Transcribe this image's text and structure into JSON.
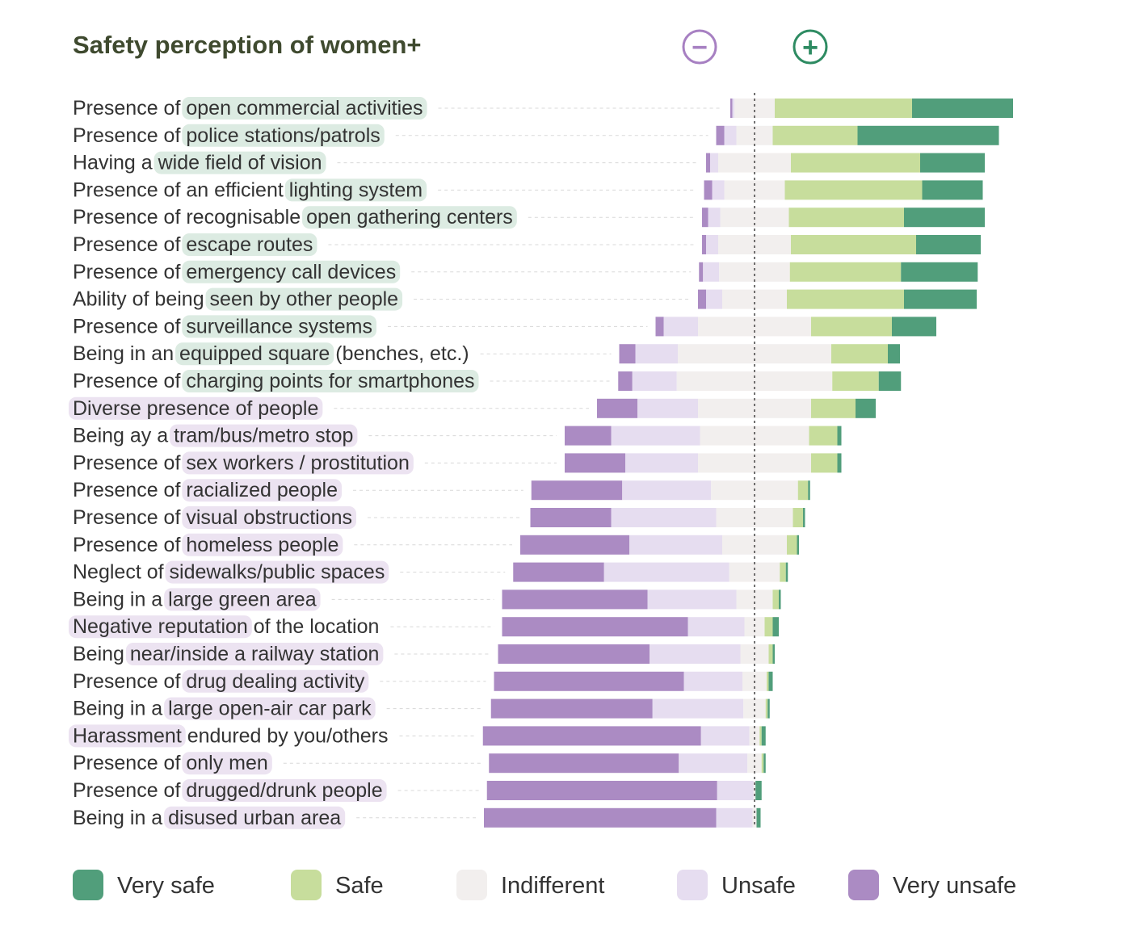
{
  "chart_data": {
    "type": "bar",
    "subtype": "diverging-stacked-horizontal",
    "title": "Safety perception of women+",
    "scale_symbols": {
      "negative": "−",
      "positive": "+"
    },
    "xlabel": "",
    "ylabel": "",
    "unit": "share of respondents (%)",
    "grid": false,
    "legend_position": "bottom",
    "series": [
      {
        "name": "Very unsafe",
        "color": "#ab8bc3"
      },
      {
        "name": "Unsafe",
        "color": "#e6ddf0"
      },
      {
        "name": "Indifferent",
        "color": "#f2efee"
      },
      {
        "name": "Safe",
        "color": "#c7dd9c"
      },
      {
        "name": "Very safe",
        "color": "#519e7b"
      }
    ],
    "legend": [
      "Very safe",
      "Safe",
      "Indifferent",
      "Unsafe",
      "Very unsafe"
    ],
    "highlight_colors": {
      "safe_factor": "#dcebe2",
      "unsafe_factor": "#ece3f1"
    },
    "rows": [
      {
        "prefix": "Presence of ",
        "highlight": "open commercial activities",
        "suffix": "",
        "category": "safe",
        "values": [
          0.5,
          0.5,
          10,
          34,
          25
        ]
      },
      {
        "prefix": "Presence of ",
        "highlight": "police stations/patrols",
        "suffix": "",
        "category": "safe",
        "values": [
          2,
          3,
          9,
          21,
          35
        ]
      },
      {
        "prefix": "Having a ",
        "highlight": "wide field of vision",
        "suffix": "",
        "category": "safe",
        "values": [
          1,
          2,
          18,
          32,
          16
        ]
      },
      {
        "prefix": "Presence of an efficient ",
        "highlight": "lighting system",
        "suffix": "",
        "category": "safe",
        "values": [
          2,
          3,
          15,
          34,
          15
        ]
      },
      {
        "prefix": "Presence of recognisable ",
        "highlight": "open gathering centers",
        "suffix": "",
        "category": "safe",
        "values": [
          1.5,
          3,
          17,
          28.5,
          20
        ]
      },
      {
        "prefix": "Presence of ",
        "highlight": "escape routes",
        "suffix": "",
        "category": "safe",
        "values": [
          1,
          3,
          18,
          31,
          16
        ]
      },
      {
        "prefix": "Presence of ",
        "highlight": "emergency call devices",
        "suffix": "",
        "category": "safe",
        "values": [
          1,
          4,
          17.5,
          27.5,
          19
        ]
      },
      {
        "prefix": "Ability of being ",
        "highlight": "seen by other people",
        "suffix": "",
        "category": "safe",
        "values": [
          2,
          4,
          16,
          29,
          18
        ]
      },
      {
        "prefix": "Presence of ",
        "highlight": "surveillance systems",
        "suffix": "",
        "category": "safe",
        "values": [
          2,
          8.5,
          28,
          20,
          11
        ]
      },
      {
        "prefix": "Being in an ",
        "highlight": "equipped square",
        "suffix": " (benches, etc.)",
        "category": "safe",
        "values": [
          4,
          10.5,
          38,
          14,
          3
        ]
      },
      {
        "prefix": "Presence of ",
        "highlight": "charging points for smartphones",
        "suffix": "",
        "category": "safe",
        "values": [
          3.5,
          11,
          38.5,
          11.5,
          5.5
        ]
      },
      {
        "prefix": "",
        "highlight": "Diverse presence of people",
        "suffix": "",
        "category": "unsafe",
        "values": [
          10,
          15,
          28,
          11,
          5
        ]
      },
      {
        "prefix": "Being ay a ",
        "highlight": "tram/bus/metro stop",
        "suffix": "",
        "category": "unsafe",
        "values": [
          11.5,
          22,
          27,
          7,
          1
        ]
      },
      {
        "prefix": "Presence of ",
        "highlight": "sex workers / prostitution",
        "suffix": "",
        "category": "unsafe",
        "values": [
          15,
          18,
          28,
          6.5,
          1
        ]
      },
      {
        "prefix": "Presence of ",
        "highlight": "racialized people",
        "suffix": "",
        "category": "unsafe",
        "values": [
          22.5,
          22,
          21.5,
          2.5,
          0.5
        ]
      },
      {
        "prefix": "Presence of ",
        "highlight": "visual obstructions",
        "suffix": "",
        "category": "unsafe",
        "values": [
          20,
          26,
          19,
          2.5,
          0.5
        ]
      },
      {
        "prefix": "Presence of ",
        "highlight": "homeless people",
        "suffix": "",
        "category": "unsafe",
        "values": [
          27,
          23,
          16,
          2.5,
          0.5
        ]
      },
      {
        "prefix": "Neglect of ",
        "highlight": "sidewalks/public spaces",
        "suffix": "",
        "category": "unsafe",
        "values": [
          22.5,
          31,
          12.5,
          1.5,
          0.5
        ]
      },
      {
        "prefix": "Being in a ",
        "highlight": "large green area",
        "suffix": "",
        "category": "unsafe",
        "values": [
          36,
          22,
          9,
          1.5,
          0.5
        ]
      },
      {
        "prefix": "",
        "highlight": "Negative reputation",
        "suffix": " of the location",
        "category": "unsafe",
        "values": [
          46,
          14,
          5,
          2,
          1.5
        ]
      },
      {
        "prefix": "Being ",
        "highlight": "near/inside a railway station",
        "suffix": "",
        "category": "unsafe",
        "values": [
          37.5,
          22.5,
          7,
          1,
          0.5
        ]
      },
      {
        "prefix": "Presence of ",
        "highlight": "drug dealing activity",
        "suffix": "",
        "category": "unsafe",
        "values": [
          47,
          14.5,
          6,
          0.5,
          1
        ]
      },
      {
        "prefix": "Being in a ",
        "highlight": "large open-air car park",
        "suffix": "",
        "category": "unsafe",
        "values": [
          40,
          22.5,
          5.5,
          0.5,
          0.5
        ]
      },
      {
        "prefix": "",
        "highlight": "Harassment",
        "suffix": " endured by you/others",
        "category": "unsafe",
        "values": [
          54,
          12,
          2.5,
          0.5,
          1
        ]
      },
      {
        "prefix": "Presence of ",
        "highlight": "only men",
        "suffix": "",
        "category": "unsafe",
        "values": [
          47,
          17,
          3.5,
          0.5,
          0.5
        ]
      },
      {
        "prefix": "Presence of ",
        "highlight": "drugged/drunk people",
        "suffix": "",
        "category": "unsafe",
        "values": [
          57,
          9,
          0.5,
          0,
          1.5
        ]
      },
      {
        "prefix": "Being in a ",
        "highlight": "disused urban area",
        "suffix": "",
        "category": "unsafe",
        "values": [
          57.5,
          9,
          1,
          0,
          1
        ]
      }
    ]
  }
}
